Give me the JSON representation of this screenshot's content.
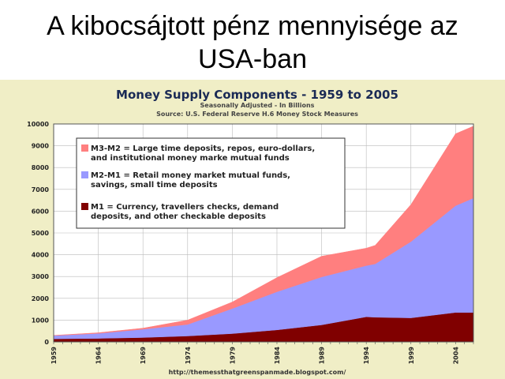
{
  "slide": {
    "title_line1": "A kibocsájtott pénz mennyisége az",
    "title_line2": "USA-ban"
  },
  "chart_data": {
    "type": "area",
    "stacked": true,
    "title": "Money Supply Components - 1959 to 2005",
    "subtitle1": "Seasonally Adjusted - In Billions",
    "subtitle2": "Source: U.S. Federal Reserve H.6 Money Stock Measures",
    "footer": "http://themessthatgreenspanmade.blogspot.com/",
    "xlim": [
      1959,
      2006
    ],
    "ylim": [
      0,
      10000
    ],
    "yticks": [
      0,
      1000,
      2000,
      3000,
      4000,
      5000,
      6000,
      7000,
      8000,
      9000,
      10000
    ],
    "xticks": [
      1959,
      1964,
      1969,
      1974,
      1979,
      1984,
      1989,
      1994,
      1999,
      2004
    ],
    "grid": true,
    "legend_position": "top-left",
    "x": [
      1959,
      1964,
      1969,
      1974,
      1979,
      1984,
      1989,
      1994,
      1995,
      1999,
      2004,
      2006
    ],
    "series": [
      {
        "name": "M1",
        "legend_lines": [
          "M1 = Currency, travellers checks, demand",
          "deposits, and other checkable deposits"
        ],
        "color": "#800000",
        "values": [
          140,
          160,
          200,
          270,
          380,
          550,
          780,
          1150,
          1130,
          1100,
          1350,
          1350
        ]
      },
      {
        "name": "M2-M1",
        "legend_lines": [
          "M2-M1 = Retail money market mutual funds,",
          "savings, small time deposits"
        ],
        "color": "#9999ff",
        "values": [
          150,
          230,
          380,
          530,
          1150,
          1750,
          2200,
          2350,
          2450,
          3500,
          4900,
          5250
        ]
      },
      {
        "name": "M3-M2",
        "legend_lines": [
          "M3-M2 = Large time deposits, repos, euro-dollars,",
          "and institutional money marke mutual funds"
        ],
        "color": "#ff7f7f",
        "values": [
          10,
          30,
          50,
          200,
          300,
          650,
          950,
          800,
          850,
          1700,
          3300,
          3300
        ]
      }
    ]
  }
}
